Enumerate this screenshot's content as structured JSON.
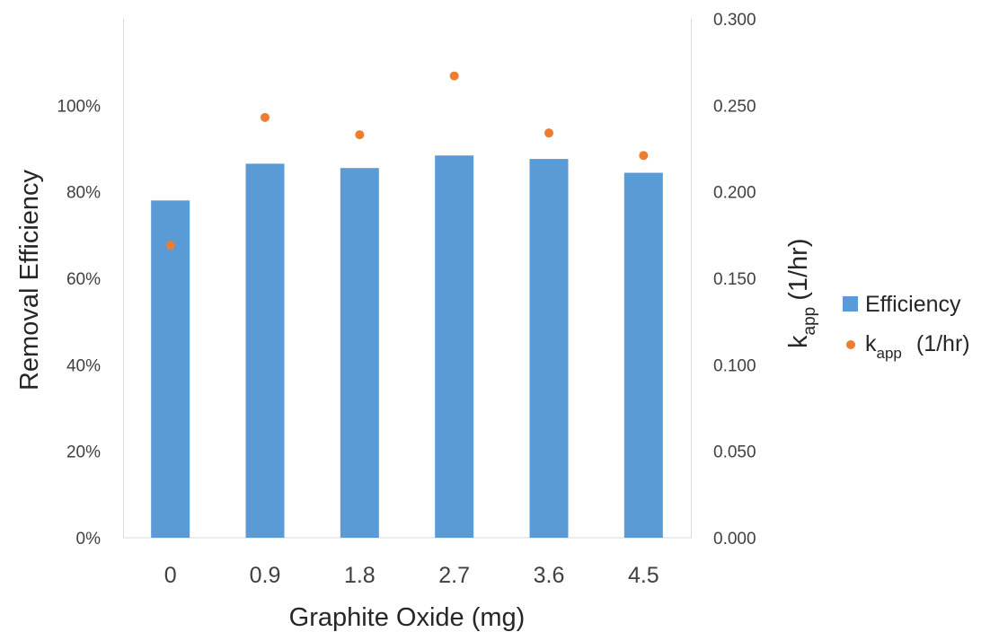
{
  "chart_data": {
    "type": "bar",
    "categories": [
      "0",
      "0.9",
      "1.8",
      "2.7",
      "3.6",
      "4.5"
    ],
    "xlabel": "Graphite Oxide (mg)",
    "ylabel_left": "Removal Efficiency",
    "ylabel_right_main": "k",
    "ylabel_right_sub": "app",
    "ylabel_right_unit": "(1/hr)",
    "ylim_left": [
      0,
      1.2
    ],
    "ylim_right": [
      0,
      0.3
    ],
    "yticks_left": [
      "0%",
      "20%",
      "40%",
      "60%",
      "80%",
      "100%"
    ],
    "yticks_left_values": [
      0,
      0.2,
      0.4,
      0.6,
      0.8,
      1.0
    ],
    "yticks_right": [
      "0.000",
      "0.050",
      "0.100",
      "0.150",
      "0.200",
      "0.250",
      "0.300"
    ],
    "yticks_right_values": [
      0,
      0.05,
      0.1,
      0.15,
      0.2,
      0.25,
      0.3
    ],
    "grid": false,
    "legend_position": "right",
    "series": [
      {
        "name": "Efficiency",
        "kind": "bar",
        "axis": "left",
        "color": "#5b9bd5",
        "values": [
          0.78,
          0.865,
          0.855,
          0.884,
          0.876,
          0.844
        ]
      },
      {
        "name_main": "k",
        "name_sub": "app",
        "name_unit": "(1/hr)",
        "kind": "scatter",
        "axis": "right",
        "color": "#ed7d31",
        "values": [
          0.169,
          0.243,
          0.233,
          0.267,
          0.234,
          0.221
        ]
      }
    ]
  }
}
